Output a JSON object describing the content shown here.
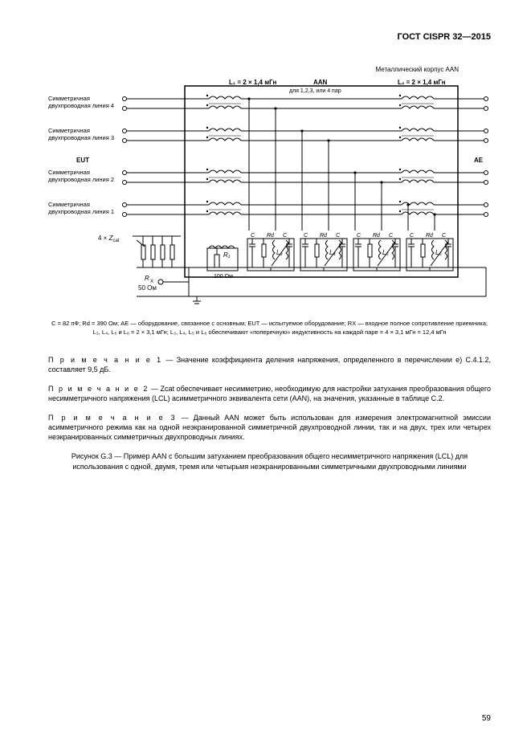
{
  "header": "ГОСТ CISPR 32—2015",
  "diagram": {
    "top_caption": "Металлический корпус AAN",
    "L1": "L₁ = 2 × 1,4 мГн",
    "L2": "L₂ = 2 × 1,4 мГн",
    "aan_title1": "AAN",
    "aan_title2": "для 1,2,3, или 4 пар",
    "left_label_4": "Симметричная\nдвухпроводная линия 4",
    "left_label_3": "Симметричная\nдвухпроводная линия 3",
    "left_label_eut": "EUT",
    "left_label_2": "Симметричная\nдвухпроводная линия 2",
    "left_label_1": "Симметричная\nдвухпроводная линия 1",
    "right_label": "AE",
    "zcat": "4 × Zcat",
    "rx_label1": "Rx",
    "rx_label2": "50 Ом",
    "r1_label1": "R₁",
    "r1_label2": "100 Ом",
    "C_label": "C",
    "Rd_label": "Rd",
    "L3": "L₃",
    "L4": "L₄",
    "L5": "L₅",
    "L6": "L₆",
    "colors": {
      "line": "#000000",
      "bg": "#ffffff"
    }
  },
  "caption_below": "C = 82 пФ; Rd = 390 Ом; AE — оборудование, связанное с основным; EUT — испытуемое оборудование; RX — входное полное сопротивление приемника; L₃, L₄, L₅ и L₆ = 2 × 3,1 мГн; L₃, L₄, L₅ и L₆ обеспечивают «поперечную» индуктивность на каждой паре = 4 × 3,1 мГн = 12,4 мГн",
  "note1_title": "П р и м е ч а н и е  1",
  "note1_body": " — Значение коэффициента деления напряжения, определенного в перечислении е) С.4.1.2, составляет 9,5 дБ.",
  "note2_title": "П р и м е ч а н и е  2",
  "note2_body": " — Zcat обеспечивает несимметрию, необходимую для настройки затухания преобразования общего несимметричного напряжения (LCL) асимметричного эквивалента сети (AAN), на значения, указанные в таблице С.2.",
  "note3_title": "П р и м е ч а н и е  3",
  "note3_body": " — Данный AAN может быть использован для измерения электромагнитной эмиссии асимметричного режима как на одной неэкранированной симметричной двухпроводной линии, так и на двух, трех или четырех неэкранированных симметричных двухпроводных линиях.",
  "figure_caption": "Рисунок G.3 — Пример AAN с большим затуханием преобразования общего несимметричного напряжения (LCL) для использования с одной, двумя, тремя или четырьмя неэкранированными симметричными двухпроводными линиями",
  "page_num": "59"
}
